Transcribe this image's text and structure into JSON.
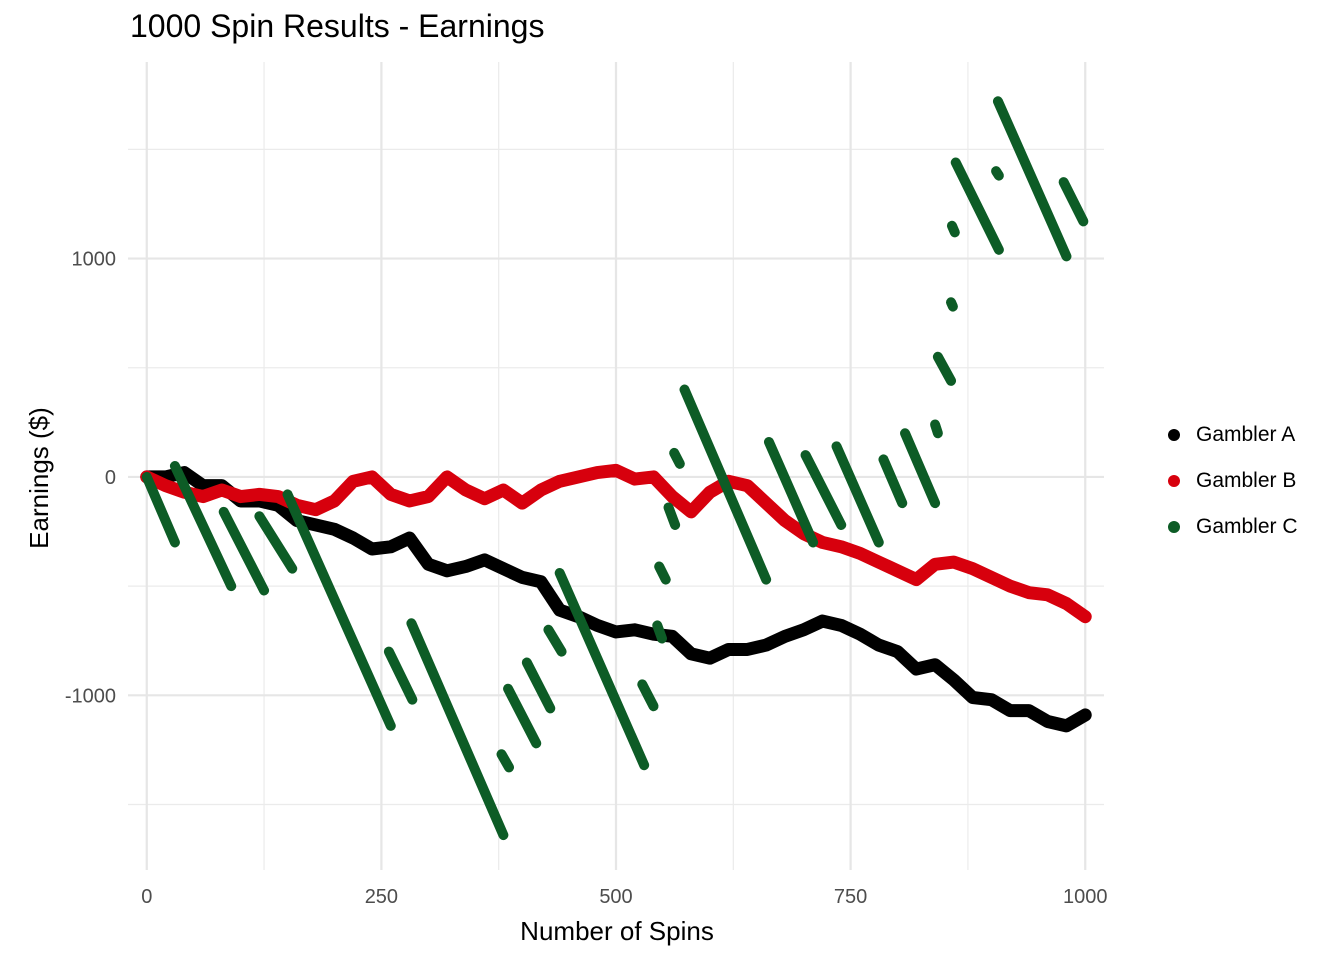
{
  "chart_data": {
    "type": "scatter",
    "title": "1000 Spin Results - Earnings",
    "xlabel": "Number of Spins",
    "ylabel": "Earnings ($)",
    "xlim": [
      -20,
      1020
    ],
    "ylim": [
      -1800,
      1900
    ],
    "x_ticks": [
      0,
      250,
      500,
      750,
      1000
    ],
    "x_tick_labels": [
      "0",
      "250",
      "500",
      "750",
      "1000"
    ],
    "y_ticks": [
      -1000,
      0,
      1000
    ],
    "y_tick_labels": [
      "-1000",
      "0",
      "1000"
    ],
    "grid": true,
    "legend_position": "right",
    "series": [
      {
        "name": "Gambler A",
        "color": "#000000",
        "x": [
          0,
          20,
          40,
          60,
          80,
          100,
          120,
          140,
          160,
          180,
          200,
          220,
          240,
          260,
          280,
          300,
          320,
          340,
          360,
          380,
          400,
          420,
          440,
          460,
          480,
          500,
          520,
          540,
          560,
          580,
          600,
          620,
          640,
          660,
          680,
          700,
          720,
          740,
          760,
          780,
          800,
          820,
          840,
          860,
          880,
          900,
          920,
          940,
          960,
          980,
          1000
        ],
        "y": [
          0,
          0,
          20,
          -40,
          -40,
          -110,
          -110,
          -130,
          -200,
          -220,
          -240,
          -280,
          -330,
          -320,
          -280,
          -400,
          -430,
          -410,
          -380,
          -420,
          -460,
          -480,
          -610,
          -640,
          -680,
          -710,
          -700,
          -720,
          -730,
          -810,
          -830,
          -790,
          -790,
          -770,
          -730,
          -700,
          -660,
          -680,
          -720,
          -770,
          -800,
          -880,
          -860,
          -930,
          -1010,
          -1020,
          -1070,
          -1070,
          -1120,
          -1140,
          -1090
        ]
      },
      {
        "name": "Gambler B",
        "color": "#d7000d",
        "x": [
          0,
          20,
          40,
          60,
          80,
          100,
          120,
          140,
          160,
          180,
          200,
          220,
          240,
          260,
          280,
          300,
          320,
          340,
          360,
          380,
          400,
          420,
          440,
          460,
          480,
          500,
          520,
          540,
          560,
          580,
          600,
          620,
          640,
          660,
          680,
          700,
          720,
          740,
          760,
          780,
          800,
          820,
          840,
          860,
          880,
          900,
          920,
          940,
          960,
          980,
          1000
        ],
        "y": [
          0,
          -40,
          -70,
          -90,
          -60,
          -90,
          -80,
          -90,
          -130,
          -150,
          -110,
          -20,
          0,
          -80,
          -110,
          -90,
          0,
          -60,
          -100,
          -60,
          -120,
          -60,
          -20,
          0,
          20,
          30,
          -10,
          0,
          -90,
          -160,
          -70,
          -20,
          -40,
          -120,
          -200,
          -260,
          -300,
          -320,
          -350,
          -390,
          -430,
          -470,
          -400,
          -390,
          -420,
          -460,
          -500,
          -530,
          -540,
          -580,
          -640
        ]
      },
      {
        "name": "Gambler C",
        "color": "#0d5c26",
        "segments": [
          {
            "x0": 0,
            "y0": 0,
            "x1": 30,
            "y1": -300
          },
          {
            "x0": 30,
            "y0": 50,
            "x1": 90,
            "y1": -500
          },
          {
            "x0": 82,
            "y0": -160,
            "x1": 125,
            "y1": -520
          },
          {
            "x0": 120,
            "y0": -180,
            "x1": 155,
            "y1": -420
          },
          {
            "x0": 150,
            "y0": -80,
            "x1": 260,
            "y1": -1140
          },
          {
            "x0": 258,
            "y0": -800,
            "x1": 283,
            "y1": -1020
          },
          {
            "x0": 282,
            "y0": -670,
            "x1": 380,
            "y1": -1640
          },
          {
            "x0": 378,
            "y0": -1270,
            "x1": 386,
            "y1": -1330
          },
          {
            "x0": 385,
            "y0": -970,
            "x1": 415,
            "y1": -1220
          },
          {
            "x0": 405,
            "y0": -850,
            "x1": 430,
            "y1": -1060
          },
          {
            "x0": 428,
            "y0": -700,
            "x1": 442,
            "y1": -800
          },
          {
            "x0": 440,
            "y0": -440,
            "x1": 530,
            "y1": -1320
          },
          {
            "x0": 528,
            "y0": -950,
            "x1": 540,
            "y1": -1050
          },
          {
            "x0": 544,
            "y0": -680,
            "x1": 549,
            "y1": -740
          },
          {
            "x0": 546,
            "y0": -410,
            "x1": 553,
            "y1": -470
          },
          {
            "x0": 556,
            "y0": -140,
            "x1": 563,
            "y1": -220
          },
          {
            "x0": 562,
            "y0": 110,
            "x1": 568,
            "y1": 60
          },
          {
            "x0": 573,
            "y0": 400,
            "x1": 660,
            "y1": -470
          },
          {
            "x0": 663,
            "y0": 160,
            "x1": 710,
            "y1": -300
          },
          {
            "x0": 702,
            "y0": 100,
            "x1": 740,
            "y1": -220
          },
          {
            "x0": 735,
            "y0": 140,
            "x1": 780,
            "y1": -300
          },
          {
            "x0": 785,
            "y0": 80,
            "x1": 805,
            "y1": -120
          },
          {
            "x0": 808,
            "y0": 200,
            "x1": 840,
            "y1": -120
          },
          {
            "x0": 840,
            "y0": 240,
            "x1": 843,
            "y1": 200
          },
          {
            "x0": 843,
            "y0": 550,
            "x1": 857,
            "y1": 440
          },
          {
            "x0": 857,
            "y0": 800,
            "x1": 859,
            "y1": 780
          },
          {
            "x0": 858,
            "y0": 1150,
            "x1": 861,
            "y1": 1120
          },
          {
            "x0": 862,
            "y0": 1440,
            "x1": 908,
            "y1": 1040
          },
          {
            "x0": 905,
            "y0": 1400,
            "x1": 908,
            "y1": 1380
          },
          {
            "x0": 907,
            "y0": 1720,
            "x1": 980,
            "y1": 1010
          },
          {
            "x0": 977,
            "y0": 1350,
            "x1": 998,
            "y1": 1170
          }
        ]
      }
    ]
  }
}
